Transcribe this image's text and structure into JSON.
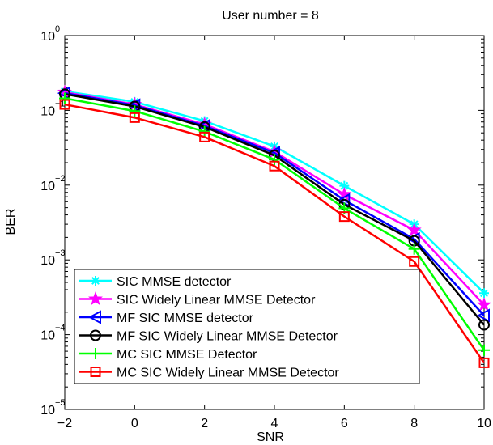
{
  "chart_data": {
    "type": "line",
    "title": "User number = 8",
    "xlabel": "SNR",
    "ylabel": "BER",
    "x": [
      -2,
      0,
      2,
      4,
      6,
      8,
      10
    ],
    "xlim": [
      -2,
      10
    ],
    "ylim": [
      1e-05,
      1
    ],
    "yscale": "log",
    "x_ticks": [
      -2,
      0,
      2,
      4,
      6,
      8,
      10
    ],
    "x_tick_labels": [
      "−2",
      "0",
      "2",
      "4",
      "6",
      "8",
      "10"
    ],
    "y_ticks": [
      1e-05,
      0.0001,
      0.001,
      0.01,
      0.1,
      1
    ],
    "y_tick_labels": [
      {
        "base": "10",
        "exp": "−5"
      },
      {
        "base": "10",
        "exp": "−4"
      },
      {
        "base": "10",
        "exp": "−3"
      },
      {
        "base": "10",
        "exp": "−2"
      },
      {
        "base": "10",
        "exp": "−1"
      },
      {
        "base": "10",
        "exp": "0"
      }
    ],
    "grid": false,
    "legend_position": "bottom-left",
    "series": [
      {
        "name": "SIC MMSE detector",
        "color": "#00ffff",
        "marker": "asterisk",
        "values": [
          0.18,
          0.13,
          0.072,
          0.033,
          0.0098,
          0.003,
          0.00036
        ]
      },
      {
        "name": "SIC Widely Linear MMSE Detector",
        "color": "#ff00ff",
        "marker": "star",
        "values": [
          0.175,
          0.12,
          0.065,
          0.028,
          0.0075,
          0.0025,
          0.00025
        ]
      },
      {
        "name": "MF SIC MMSE detector",
        "color": "#0000ff",
        "marker": "triangle-left",
        "values": [
          0.17,
          0.117,
          0.062,
          0.027,
          0.0063,
          0.0019,
          0.00018
        ]
      },
      {
        "name": "MF SIC Widely Linear MMSE Detector",
        "color": "#000000",
        "marker": "circle",
        "values": [
          0.165,
          0.113,
          0.06,
          0.025,
          0.0055,
          0.0018,
          0.000135
        ]
      },
      {
        "name": "MC SIC MMSE Detector",
        "color": "#00ff00",
        "marker": "plus",
        "values": [
          0.145,
          0.098,
          0.052,
          0.022,
          0.0049,
          0.0014,
          6.2e-05
        ]
      },
      {
        "name": "MC SIC Widely Linear MMSE Detector",
        "color": "#ff0000",
        "marker": "square",
        "values": [
          0.12,
          0.08,
          0.044,
          0.018,
          0.0038,
          0.00095,
          4.2e-05
        ]
      }
    ]
  }
}
